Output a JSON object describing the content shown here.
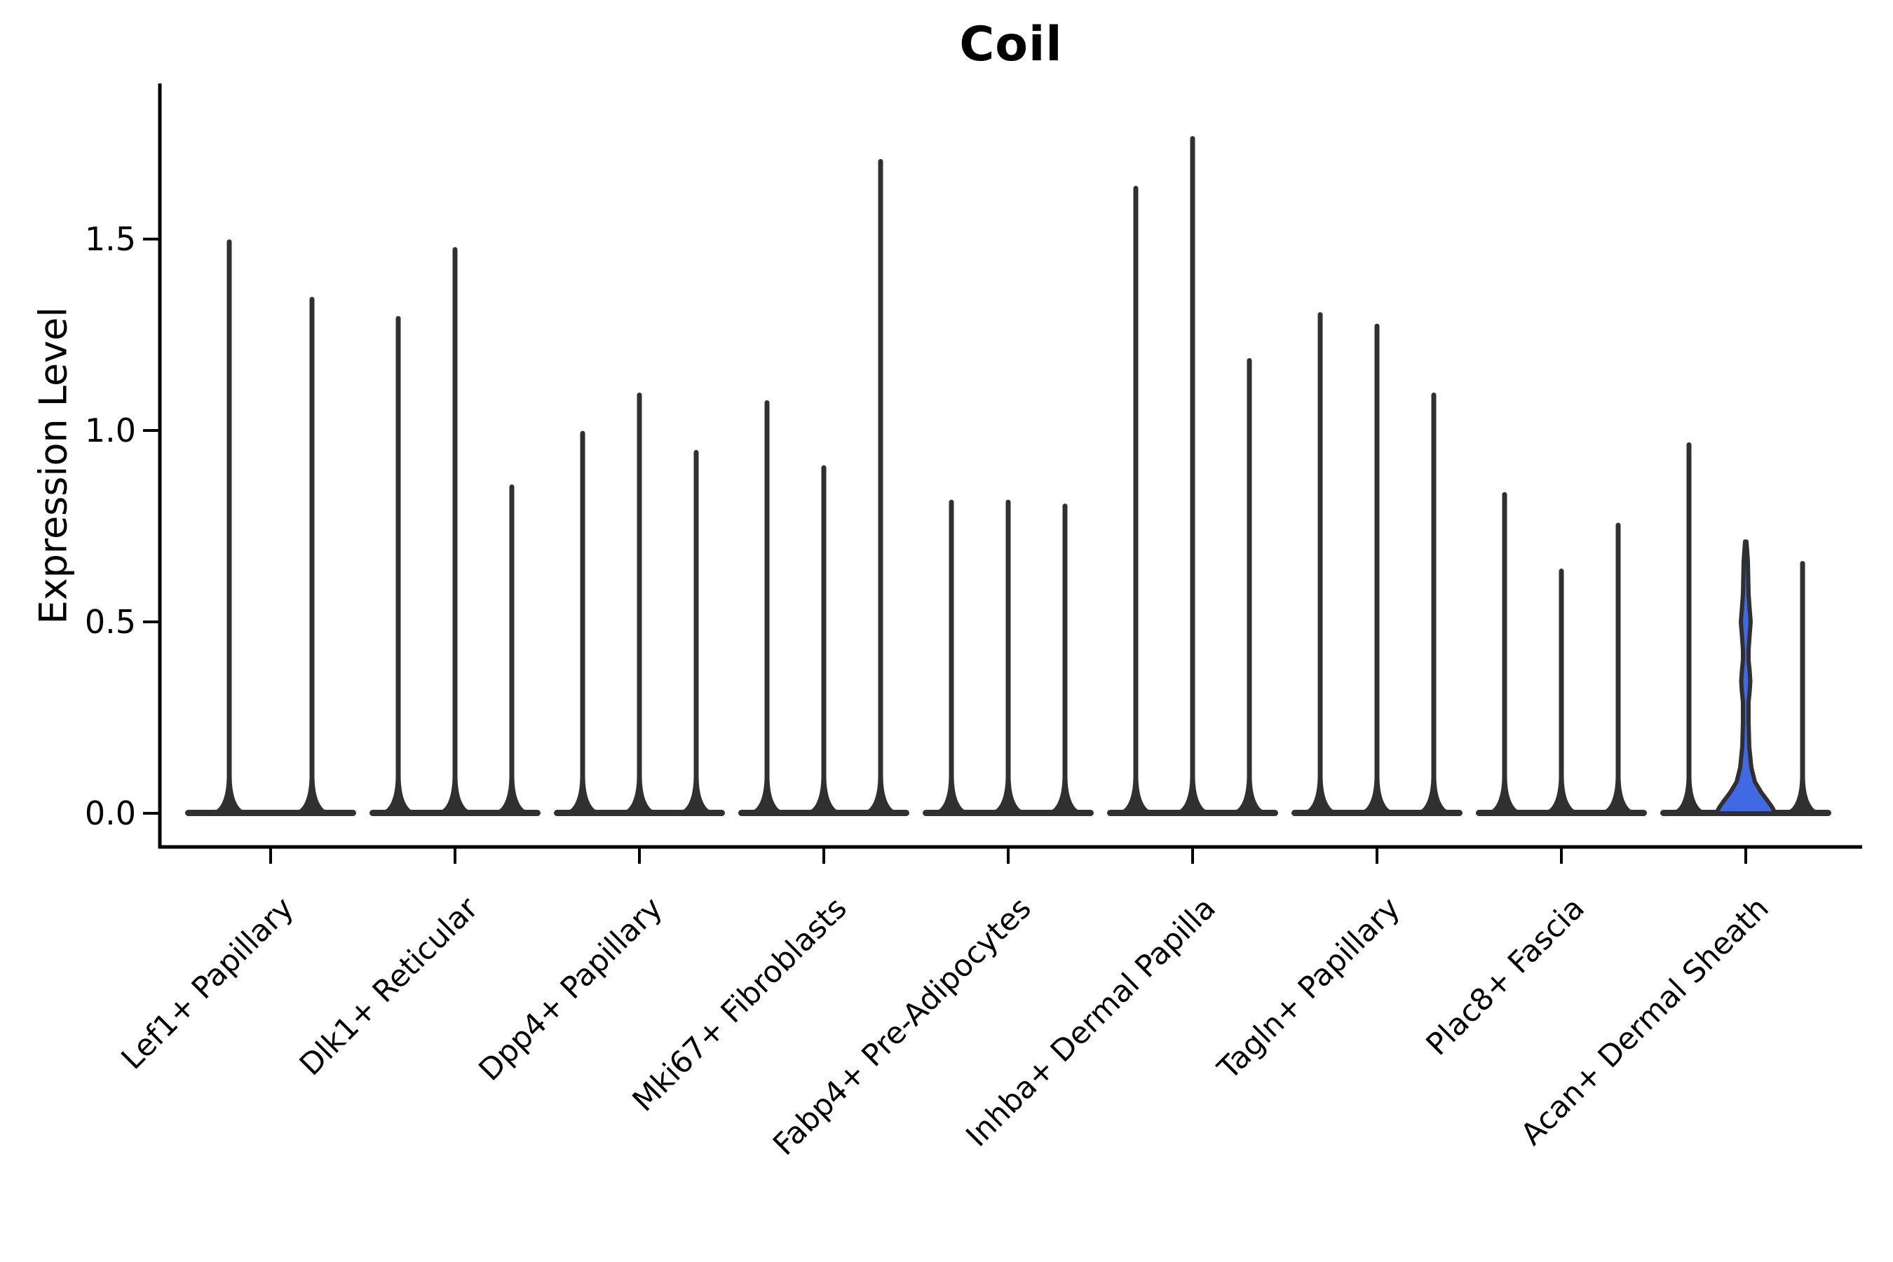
{
  "title": "Coil",
  "ylabel": "Expression Level",
  "chart_data": {
    "type": "violin",
    "title": "Coil",
    "xlabel": "",
    "ylabel": "Expression Level",
    "ylim": [
      0,
      1.9
    ],
    "yticks": [
      0.0,
      0.5,
      1.0,
      1.5
    ],
    "grid": false,
    "legend": "none",
    "violin_line_color": "#303030",
    "axis_color": "#000000",
    "categories": [
      "Lef1+ Papillary",
      "Dlk1+ Reticular",
      "Dpp4+ Papillary",
      "Mki67+ Fibroblasts",
      "Fabp4+ Pre-Adipocytes",
      "Inhba+ Dermal Papilla",
      "Tagln+ Papillary",
      "Plac8+ Fascia",
      "Acan+ Dermal Sheath"
    ],
    "groups": [
      {
        "category": "Lef1+ Papillary",
        "violin_max": [
          1.5,
          1.35
        ]
      },
      {
        "category": "Dlk1+ Reticular",
        "violin_max": [
          1.3,
          1.48,
          0.86
        ]
      },
      {
        "category": "Dpp4+ Papillary",
        "violin_max": [
          1.0,
          1.1,
          0.95
        ]
      },
      {
        "category": "Mki67+ Fibroblasts",
        "violin_max": [
          1.08,
          0.91,
          1.71
        ]
      },
      {
        "category": "Fabp4+ Pre-Adipocytes",
        "violin_max": [
          0.82,
          0.82,
          0.81
        ]
      },
      {
        "category": "Inhba+ Dermal Papilla",
        "violin_max": [
          1.64,
          1.77,
          1.19
        ]
      },
      {
        "category": "Tagln+ Papillary",
        "violin_max": [
          1.31,
          1.28,
          1.1
        ]
      },
      {
        "category": "Plac8+ Fascia",
        "violin_max": [
          0.84,
          0.64,
          0.76
        ]
      },
      {
        "category": "Acan+ Dermal Sheath",
        "violin_max": [
          0.97,
          0.71,
          0.66
        ]
      }
    ],
    "highlight_violin": {
      "category": "Acan+ Dermal Sheath",
      "violin_index": 1,
      "max_value": 0.71,
      "fill_color": "#4169E1",
      "bulge_values": [
        0.5,
        0.345
      ],
      "body_value": 0.06,
      "description": "only violin with visible filled body; wide blue mound at 0 with two small bulges on the spike"
    }
  }
}
